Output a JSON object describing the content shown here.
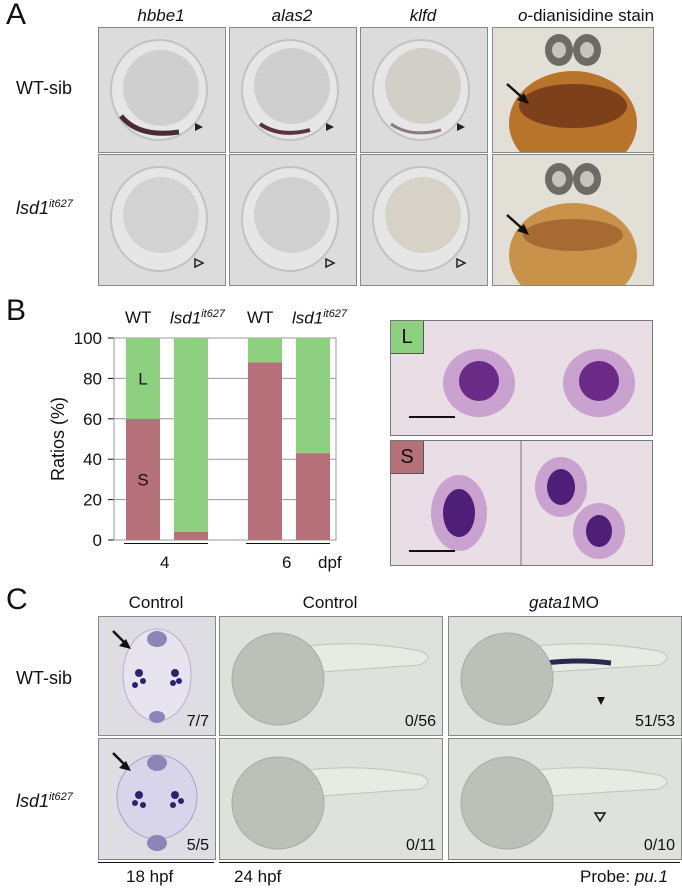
{
  "panel_a": {
    "label": "A",
    "columns": [
      {
        "text": "hbbe1",
        "italic": true
      },
      {
        "text": "alas2",
        "italic": true
      },
      {
        "text": "klfd",
        "italic": true
      },
      {
        "text_prefix": "o",
        "text_rest": "-dianisidine stain"
      }
    ],
    "rows": [
      {
        "text": "WT-sib"
      },
      {
        "text": "lsd1",
        "sup": "it627"
      }
    ],
    "arrowheads": [
      "filled",
      "filled",
      "filled",
      "open",
      "open",
      "open"
    ]
  },
  "panel_b": {
    "label": "B",
    "group_labels": [
      "WT",
      "lsd1",
      "WT",
      "lsd1"
    ],
    "group_sup": "it627",
    "x_labels": [
      "4",
      "6"
    ],
    "x_unit": "dpf",
    "cell_tags": [
      "L",
      "S"
    ]
  },
  "chart_data": {
    "type": "bar",
    "stacked": true,
    "categories": [
      "WT 4 dpf",
      "lsd1it627 4 dpf",
      "WT 6 dpf",
      "lsd1it627 6 dpf"
    ],
    "series": [
      {
        "name": "S",
        "values": [
          60,
          4,
          88,
          43
        ],
        "color": "#b5707a"
      },
      {
        "name": "L",
        "values": [
          40,
          96,
          12,
          57
        ],
        "color": "#8dd07f"
      }
    ],
    "ylabel": "Ratios (%)",
    "yticks": [
      "100",
      "80",
      "60",
      "40",
      "20",
      "0"
    ],
    "ylim": [
      0,
      100
    ],
    "grid": true
  },
  "panel_c": {
    "label": "C",
    "columns": [
      {
        "text": "Control",
        "italic": false
      },
      {
        "text": "Control",
        "italic": false
      },
      {
        "text_it": "gata1",
        "text_rest": "MO"
      }
    ],
    "rows": [
      {
        "text": "WT-sib"
      },
      {
        "text": "lsd1",
        "sup": "it627"
      }
    ],
    "counts": [
      "7/7",
      "0/56",
      "51/53",
      "5/5",
      "0/11",
      "0/10"
    ],
    "footer": {
      "left": "18 hpf",
      "mid": "24 hpf",
      "probe": "Probe: ",
      "probe_it": "pu.1"
    }
  }
}
